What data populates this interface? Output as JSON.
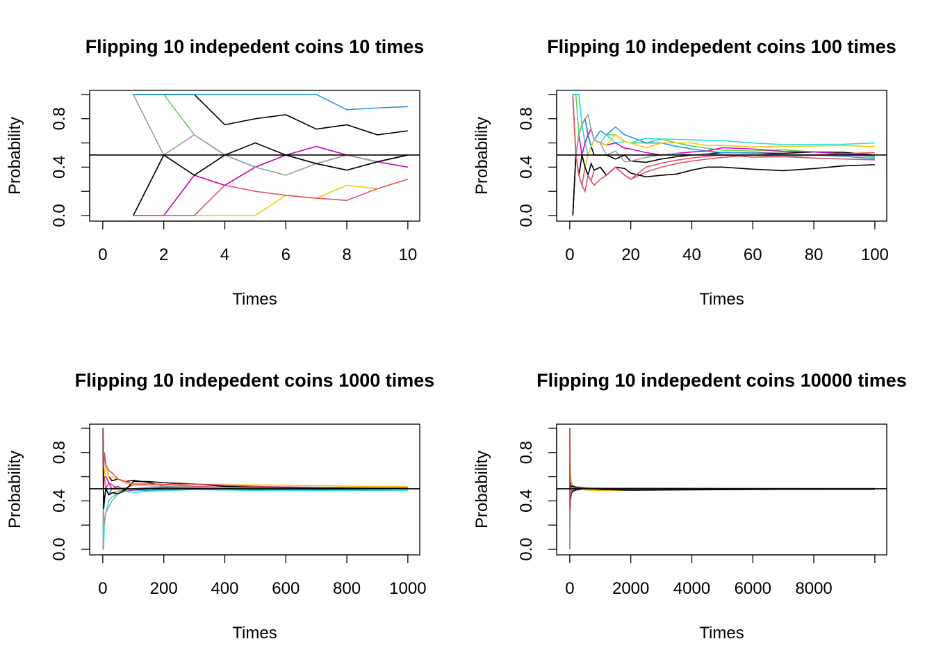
{
  "chart_data": [
    {
      "type": "line",
      "title": "Flipping 10 indepedent coins 10 times",
      "xlabel": "Times",
      "ylabel": "Probability",
      "x": [
        1,
        2,
        3,
        4,
        5,
        6,
        7,
        8,
        9,
        10
      ],
      "xlim": [
        -0.43,
        10.39
      ],
      "ylim": [
        -0.046,
        1.034
      ],
      "xticks": [
        0,
        2,
        4,
        6,
        8,
        10
      ],
      "yticks": [
        {
          "value": 0,
          "label": "0.0"
        },
        {
          "value": 0.2,
          "label": null
        },
        0.4,
        {
          "value": 0.6,
          "label": null
        },
        0.8,
        {
          "value": 1,
          "label": null
        }
      ],
      "hline": 0.5,
      "series": [
        {
          "color": "#000000",
          "values": [
            1,
            1,
            1,
            0.75,
            0.8,
            0.833,
            0.714,
            0.75,
            0.667,
            0.7
          ]
        },
        {
          "color": "#DF536B",
          "values": [
            0,
            0,
            0.333,
            0.25,
            0.4,
            0.5,
            0.571,
            0.5,
            0.444,
            0.4
          ]
        },
        {
          "color": "#61D04F",
          "values": [
            1,
            1,
            0.667,
            0.5,
            0.4,
            0.5,
            0.429,
            0.5,
            0.444,
            0.5
          ]
        },
        {
          "color": "#2297E6",
          "values": [
            1,
            1,
            1,
            1,
            1,
            1,
            1,
            0.875,
            0.889,
            0.9
          ]
        },
        {
          "color": "#28E2E5",
          "values": [
            0,
            0.5,
            0.333,
            0.5,
            0.4,
            0.5,
            0.429,
            0.375,
            0.444,
            0.5
          ]
        },
        {
          "color": "#CD0BBC",
          "values": [
            0,
            0,
            0.333,
            0.25,
            0.4,
            0.5,
            0.571,
            0.5,
            0.444,
            0.4
          ]
        },
        {
          "color": "#F5C710",
          "values": [
            0,
            0,
            0,
            0,
            0,
            0.167,
            0.143,
            0.25,
            0.222,
            0.3
          ]
        },
        {
          "color": "#9E9E9E",
          "values": [
            1,
            0.5,
            0.667,
            0.5,
            0.4,
            0.333,
            0.429,
            0.5,
            0.444,
            0.5
          ]
        },
        {
          "color": "#000000",
          "values": [
            0,
            0.5,
            0.333,
            0.5,
            0.6,
            0.5,
            0.429,
            0.375,
            0.444,
            0.5
          ]
        },
        {
          "color": "#DF536B",
          "values": [
            0,
            0,
            0,
            0.25,
            0.2,
            0.167,
            0.143,
            0.125,
            0.222,
            0.3
          ]
        }
      ]
    },
    {
      "type": "line",
      "title": "Flipping 10 indepedent coins 100 times",
      "xlabel": "Times",
      "ylabel": "Probability",
      "x": [
        1,
        2,
        3,
        4,
        5,
        6,
        7,
        8,
        10,
        12,
        15,
        18,
        20,
        25,
        30,
        35,
        40,
        45,
        50,
        60,
        70,
        80,
        90,
        100
      ],
      "xlim": [
        -4.3,
        103.9
      ],
      "ylim": [
        -0.046,
        1.034
      ],
      "xticks": [
        0,
        20,
        40,
        60,
        80,
        100
      ],
      "yticks": [
        {
          "value": 0,
          "label": "0.0"
        },
        {
          "value": 0.2,
          "label": null
        },
        0.4,
        {
          "value": 0.6,
          "label": null
        },
        0.8,
        {
          "value": 1,
          "label": null
        }
      ],
      "hline": 0.5,
      "series": [
        {
          "color": "#000000",
          "values": [
            0,
            0.5,
            0.667,
            0.75,
            0.8,
            0.667,
            0.571,
            0.5,
            0.5,
            0.5,
            0.467,
            0.5,
            0.45,
            0.44,
            0.467,
            0.486,
            0.5,
            0.511,
            0.52,
            0.517,
            0.514,
            0.525,
            0.522,
            0.5
          ]
        },
        {
          "color": "#DF536B",
          "values": [
            1,
            0.5,
            0.333,
            0.25,
            0.4,
            0.333,
            0.286,
            0.375,
            0.4,
            0.333,
            0.4,
            0.333,
            0.3,
            0.36,
            0.4,
            0.429,
            0.45,
            0.467,
            0.48,
            0.5,
            0.486,
            0.5,
            0.511,
            0.52
          ]
        },
        {
          "color": "#61D04F",
          "values": [
            1,
            1,
            0.667,
            0.75,
            0.6,
            0.667,
            0.714,
            0.625,
            0.6,
            0.667,
            0.667,
            0.611,
            0.6,
            0.6,
            0.633,
            0.6,
            0.575,
            0.556,
            0.54,
            0.533,
            0.543,
            0.525,
            0.511,
            0.48
          ]
        },
        {
          "color": "#2297E6",
          "values": [
            1,
            1,
            1,
            0.75,
            0.8,
            0.667,
            0.571,
            0.625,
            0.7,
            0.667,
            0.733,
            0.667,
            0.65,
            0.6,
            0.6,
            0.571,
            0.55,
            0.533,
            0.52,
            0.517,
            0.5,
            0.5,
            0.489,
            0.47
          ]
        },
        {
          "color": "#28E2E5",
          "values": [
            1,
            1,
            1,
            0.75,
            0.6,
            0.5,
            0.571,
            0.625,
            0.6,
            0.667,
            0.6,
            0.611,
            0.6,
            0.64,
            0.633,
            0.629,
            0.625,
            0.622,
            0.62,
            0.6,
            0.586,
            0.588,
            0.589,
            0.6
          ]
        },
        {
          "color": "#CD0BBC",
          "values": [
            1,
            0.5,
            0.667,
            0.5,
            0.6,
            0.667,
            0.714,
            0.625,
            0.6,
            0.583,
            0.6,
            0.556,
            0.55,
            0.52,
            0.5,
            0.514,
            0.525,
            0.533,
            0.56,
            0.55,
            0.529,
            0.525,
            0.511,
            0.5
          ]
        },
        {
          "color": "#F5C710",
          "values": [
            1,
            0.5,
            0.333,
            0.5,
            0.4,
            0.5,
            0.571,
            0.625,
            0.6,
            0.583,
            0.667,
            0.611,
            0.6,
            0.56,
            0.6,
            0.6,
            0.6,
            0.578,
            0.58,
            0.567,
            0.571,
            0.575,
            0.578,
            0.57
          ]
        },
        {
          "color": "#9E9E9E",
          "values": [
            1,
            0.5,
            0.667,
            0.75,
            0.8,
            0.833,
            0.714,
            0.625,
            0.6,
            0.5,
            0.533,
            0.444,
            0.45,
            0.48,
            0.5,
            0.514,
            0.5,
            0.511,
            0.5,
            0.5,
            0.486,
            0.5,
            0.5,
            0.49
          ]
        },
        {
          "color": "#000000",
          "values": [
            0,
            0.5,
            0.333,
            0.5,
            0.4,
            0.333,
            0.429,
            0.375,
            0.4,
            0.333,
            0.4,
            0.389,
            0.35,
            0.32,
            0.333,
            0.343,
            0.375,
            0.4,
            0.4,
            0.383,
            0.371,
            0.388,
            0.411,
            0.42
          ]
        },
        {
          "color": "#DF536B",
          "values": [
            1,
            0.5,
            0.333,
            0.25,
            0.2,
            0.333,
            0.286,
            0.25,
            0.3,
            0.333,
            0.4,
            0.333,
            0.3,
            0.4,
            0.433,
            0.457,
            0.475,
            0.489,
            0.5,
            0.483,
            0.486,
            0.475,
            0.467,
            0.46
          ]
        }
      ]
    },
    {
      "type": "line",
      "title": "Flipping 10 indepedent coins 1000 times",
      "xlabel": "Times",
      "ylabel": "Probability",
      "x": [
        1,
        2,
        3,
        5,
        10,
        20,
        30,
        50,
        75,
        100,
        150,
        200,
        300,
        400,
        500,
        600,
        700,
        800,
        900,
        1000
      ],
      "xlim": [
        -43,
        1039
      ],
      "ylim": [
        -0.046,
        1.034
      ],
      "xticks": [
        0,
        200,
        400,
        600,
        800,
        1000
      ],
      "yticks": [
        {
          "value": 0,
          "label": "0.0"
        },
        {
          "value": 0.2,
          "label": null
        },
        0.4,
        {
          "value": 0.6,
          "label": null
        },
        0.8,
        {
          "value": 1,
          "label": null
        }
      ],
      "hline": 0.5,
      "series": [
        {
          "color": "#000000",
          "values": [
            1,
            0.5,
            0.667,
            0.8,
            0.7,
            0.6,
            0.567,
            0.58,
            0.56,
            0.57,
            0.553,
            0.52,
            0.51,
            0.505,
            0.498,
            0.49,
            0.492,
            0.496,
            0.5,
            0.502
          ]
        },
        {
          "color": "#DF536B",
          "values": [
            1,
            1,
            0.667,
            0.6,
            0.5,
            0.55,
            0.533,
            0.5,
            0.507,
            0.53,
            0.54,
            0.535,
            0.52,
            0.513,
            0.51,
            0.505,
            0.507,
            0.503,
            0.5,
            0.498
          ]
        },
        {
          "color": "#61D04F",
          "values": [
            0,
            0.5,
            0.333,
            0.4,
            0.5,
            0.45,
            0.467,
            0.48,
            0.493,
            0.5,
            0.507,
            0.51,
            0.503,
            0.5,
            0.494,
            0.497,
            0.499,
            0.501,
            0.5,
            0.499
          ]
        },
        {
          "color": "#2297E6",
          "values": [
            0,
            0,
            0.333,
            0.4,
            0.5,
            0.45,
            0.5,
            0.5,
            0.507,
            0.49,
            0.487,
            0.495,
            0.497,
            0.49,
            0.493,
            0.49,
            0.494,
            0.495,
            0.497,
            0.5
          ]
        },
        {
          "color": "#28E2E5",
          "values": [
            0,
            0,
            0,
            0.2,
            0.3,
            0.4,
            0.433,
            0.46,
            0.48,
            0.47,
            0.48,
            0.485,
            0.493,
            0.49,
            0.485,
            0.488,
            0.485,
            0.486,
            0.488,
            0.485
          ]
        },
        {
          "color": "#CD0BBC",
          "values": [
            1,
            0.5,
            0.667,
            0.6,
            0.6,
            0.55,
            0.5,
            0.52,
            0.48,
            0.49,
            0.5,
            0.51,
            0.507,
            0.505,
            0.5,
            0.498,
            0.5,
            0.503,
            0.505,
            0.504
          ]
        },
        {
          "color": "#F5C710",
          "values": [
            1,
            0.5,
            0.667,
            0.6,
            0.7,
            0.6,
            0.6,
            0.58,
            0.547,
            0.53,
            0.527,
            0.53,
            0.537,
            0.533,
            0.532,
            0.528,
            0.527,
            0.522,
            0.52,
            0.518
          ]
        },
        {
          "color": "#9E9E9E",
          "values": [
            0,
            0.5,
            0.333,
            0.2,
            0.3,
            0.35,
            0.4,
            0.46,
            0.48,
            0.5,
            0.513,
            0.52,
            0.513,
            0.51,
            0.506,
            0.503,
            0.503,
            0.504,
            0.506,
            0.507
          ]
        },
        {
          "color": "#000000",
          "values": [
            1,
            0.5,
            0.333,
            0.4,
            0.5,
            0.45,
            0.467,
            0.46,
            0.493,
            0.56,
            0.56,
            0.55,
            0.54,
            0.52,
            0.515,
            0.51,
            0.506,
            0.505,
            0.503,
            0.505
          ]
        },
        {
          "color": "#DF536B",
          "values": [
            1,
            1,
            0.667,
            0.8,
            0.7,
            0.65,
            0.633,
            0.58,
            0.56,
            0.54,
            0.54,
            0.535,
            0.54,
            0.53,
            0.52,
            0.515,
            0.513,
            0.512,
            0.51,
            0.51
          ]
        }
      ]
    },
    {
      "type": "line",
      "title": "Flipping 10 indepedent coins 10000 times",
      "xlabel": "Times",
      "ylabel": "Probability",
      "x": [
        1,
        2,
        3,
        5,
        10,
        20,
        50,
        100,
        200,
        500,
        1000,
        2000,
        3000,
        5000,
        7000,
        10000
      ],
      "xlim": [
        -430,
        10390
      ],
      "ylim": [
        -0.046,
        1.034
      ],
      "xticks": [
        0,
        2000,
        4000,
        6000,
        8000,
        {
          "value": 10000,
          "label": null
        }
      ],
      "yticks": [
        {
          "value": 0,
          "label": "0.0"
        },
        {
          "value": 0.2,
          "label": null
        },
        0.4,
        {
          "value": 0.6,
          "label": null
        },
        0.8,
        {
          "value": 1,
          "label": null
        }
      ],
      "hline": 0.5,
      "series": [
        {
          "color": "#000000",
          "values": [
            0,
            0.5,
            0.333,
            0.2,
            0.3,
            0.4,
            0.46,
            0.48,
            0.49,
            0.498,
            0.502,
            0.497,
            0.495,
            0.498,
            0.499,
            0.5
          ]
        },
        {
          "color": "#DF536B",
          "values": [
            1,
            1,
            0.667,
            0.8,
            0.7,
            0.6,
            0.56,
            0.53,
            0.515,
            0.506,
            0.503,
            0.501,
            0.502,
            0.5,
            0.501,
            0.5
          ]
        },
        {
          "color": "#61D04F",
          "values": [
            1,
            0.5,
            0.667,
            0.6,
            0.5,
            0.55,
            0.5,
            0.51,
            0.5,
            0.494,
            0.492,
            0.49,
            0.493,
            0.495,
            0.496,
            0.497
          ]
        },
        {
          "color": "#2297E6",
          "values": [
            0,
            0.5,
            0.333,
            0.4,
            0.4,
            0.45,
            0.48,
            0.49,
            0.5,
            0.497,
            0.499,
            0.5,
            0.5,
            0.501,
            0.5,
            0.501
          ]
        },
        {
          "color": "#28E2E5",
          "values": [
            1,
            0.5,
            0.667,
            0.6,
            0.6,
            0.55,
            0.52,
            0.51,
            0.505,
            0.5,
            0.502,
            0.503,
            0.504,
            0.502,
            0.503,
            0.504
          ]
        },
        {
          "color": "#CD0BBC",
          "values": [
            0,
            0.5,
            0.667,
            0.6,
            0.5,
            0.5,
            0.52,
            0.5,
            0.495,
            0.5,
            0.503,
            0.506,
            0.505,
            0.504,
            0.502,
            0.501
          ]
        },
        {
          "color": "#F5C710",
          "values": [
            1,
            1,
            0.667,
            0.8,
            0.7,
            0.65,
            0.56,
            0.53,
            0.51,
            0.49,
            0.485,
            0.49,
            0.495,
            0.497,
            0.498,
            0.499
          ]
        },
        {
          "color": "#9E9E9E",
          "values": [
            0,
            0.5,
            0.333,
            0.4,
            0.5,
            0.45,
            0.5,
            0.52,
            0.515,
            0.51,
            0.508,
            0.506,
            0.504,
            0.503,
            0.503,
            0.502
          ]
        },
        {
          "color": "#000000",
          "values": [
            1,
            0.5,
            0.667,
            0.6,
            0.5,
            0.55,
            0.52,
            0.52,
            0.513,
            0.505,
            0.495,
            0.488,
            0.49,
            0.493,
            0.495,
            0.496
          ]
        },
        {
          "color": "#DF536B",
          "values": [
            1,
            0.5,
            0.333,
            0.4,
            0.4,
            0.45,
            0.48,
            0.5,
            0.505,
            0.503,
            0.5,
            0.499,
            0.5,
            0.5,
            0.499,
            0.5
          ]
        }
      ]
    }
  ]
}
